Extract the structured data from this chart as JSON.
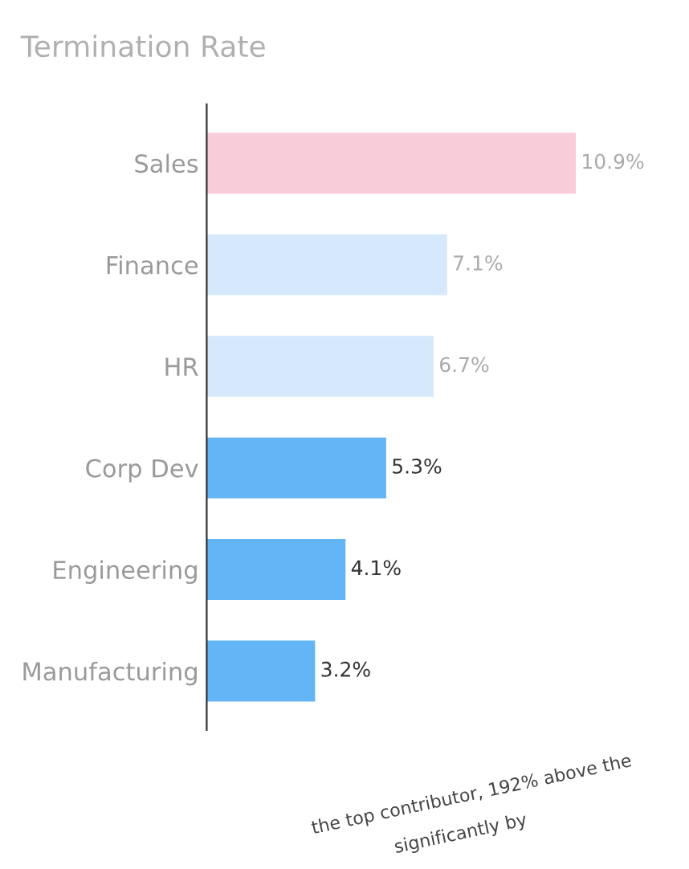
{
  "chart_data": {
    "type": "bar",
    "orientation": "horizontal",
    "title": "Termination Rate",
    "categories": [
      "Sales",
      "Finance",
      "HR",
      "Corp Dev",
      "Engineering",
      "Manufacturing"
    ],
    "values": [
      10.9,
      7.1,
      6.7,
      5.3,
      4.1,
      3.2
    ],
    "value_labels": [
      "10.9%",
      "7.1%",
      "6.7%",
      "5.3%",
      "4.1%",
      "3.2%"
    ],
    "colors": [
      "#f8cdd9",
      "#d6e8fb",
      "#d6e8fb",
      "#64b5f6",
      "#64b5f6",
      "#64b5f6"
    ],
    "annotations": [
      "the top contributor, 192% above the",
      "significantly by"
    ],
    "tick_labels": "y",
    "grid": false,
    "legend": false
  }
}
